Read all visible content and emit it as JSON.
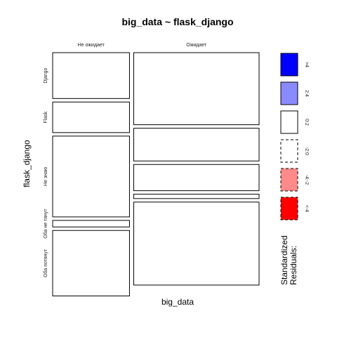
{
  "chart_data": {
    "type": "mosaic",
    "title": "big_data ~ flask_django",
    "xlabel": "big_data",
    "ylabel": "flask_django",
    "columns": [
      "Не ожидает",
      "Ожидает"
    ],
    "rows": [
      "Django",
      "Flask",
      "Не знаю",
      "Оба не тянут",
      "Оба потянут"
    ],
    "cells": [
      {
        "column": "Не ожидает",
        "row": "Django",
        "proportion": 0.08,
        "residual_class": "<0"
      },
      {
        "column": "Ожидает",
        "row": "Django",
        "proportion": 0.2,
        "residual_class": "0:2"
      },
      {
        "column": "Не ожидает",
        "row": "Flask",
        "proportion": 0.05,
        "residual_class": "<0"
      },
      {
        "column": "Ожидает",
        "row": "Flask",
        "proportion": 0.09,
        "residual_class": "0:2"
      },
      {
        "column": "Не ожидает",
        "row": "Не знаю",
        "proportion": 0.13,
        "residual_class": "0:2"
      },
      {
        "column": "Ожидает",
        "row": "Не знаю",
        "proportion": 0.07,
        "residual_class": "<0"
      },
      {
        "column": "Не ожидает",
        "row": "Оба не тянут",
        "proportion": 0.01,
        "residual_class": "0:2"
      },
      {
        "column": "Ожидает",
        "row": "Оба не тянут",
        "proportion": 0.01,
        "residual_class": "<0"
      },
      {
        "column": "Не ожидает",
        "row": "Оба потянут",
        "proportion": 0.11,
        "residual_class": "<0"
      },
      {
        "column": "Ожидает",
        "row": "Оба потянут",
        "proportion": 0.25,
        "residual_class": "0:2"
      }
    ],
    "column_shares": [
      0.38,
      0.62
    ],
    "row_shares_by_column": {
      "Не ожидает": [
        0.21,
        0.14,
        0.37,
        0.03,
        0.3
      ],
      "Ожидает": [
        0.33,
        0.15,
        0.12,
        0.02,
        0.38
      ]
    },
    "legend": {
      "title": "Standardized\nResiduals:",
      "placement": "right",
      "entries": [
        {
          "label": ">4",
          "fill": "#0000FF",
          "border": "solid"
        },
        {
          "label": "2:4",
          "fill": "#8A8AFF",
          "border": "solid"
        },
        {
          "label": "0:2",
          "fill": "#FFFFFF",
          "border": "solid"
        },
        {
          "label": "-2:0",
          "fill": "#FFFFFF",
          "border": "dashed"
        },
        {
          "label": "-4:-2",
          "fill": "#FF8A8A",
          "border": "dashed"
        },
        {
          "label": "<-4",
          "fill": "#FF0000",
          "border": "dashed"
        }
      ]
    }
  }
}
